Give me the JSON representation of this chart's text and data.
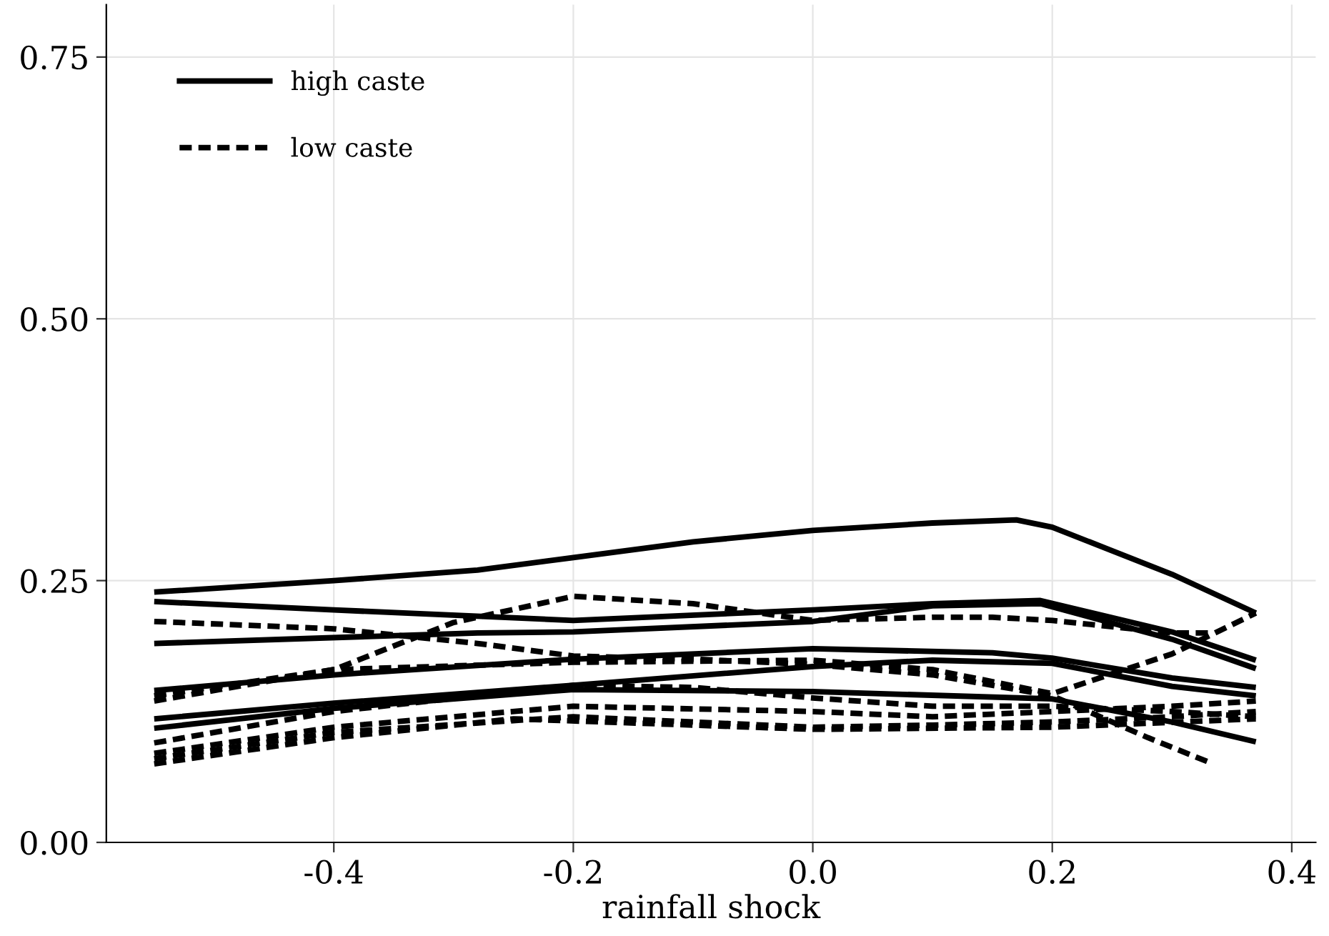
{
  "chart_data": {
    "type": "line",
    "xlabel": "rainfall shock",
    "xlim": [
      -0.59,
      0.42
    ],
    "ylim": [
      0,
      0.8
    ],
    "xticks": [
      {
        "value": -0.4,
        "label": "-0.4"
      },
      {
        "value": -0.2,
        "label": "-0.2"
      },
      {
        "value": 0,
        "label": "0.0"
      },
      {
        "value": 0.2,
        "label": "0.2"
      },
      {
        "value": 0.4,
        "label": "0.4"
      }
    ],
    "yticks": [
      {
        "value": 0,
        "label": "0.00"
      },
      {
        "value": 0.25,
        "label": "0.25"
      },
      {
        "value": 0.5,
        "label": "0.50"
      },
      {
        "value": 0.75,
        "label": "0.75"
      }
    ],
    "grid": true,
    "legend": "top left",
    "marker": "none",
    "series": [
      {
        "name": "high caste",
        "color": "#000000",
        "line_style": "solid",
        "x": [
          -0.55,
          -0.4,
          -0.28,
          -0.2,
          -0.1,
          0.0,
          0.1,
          0.17,
          0.2,
          0.3,
          0.37
        ],
        "values": [
          0.239,
          0.25,
          0.26,
          0.272,
          0.287,
          0.298,
          0.305,
          0.308,
          0.301,
          0.256,
          0.219
        ]
      },
      {
        "color": "#000000",
        "line_style": "solid",
        "x": [
          -0.55,
          -0.4,
          -0.2,
          0.0,
          0.1,
          0.19,
          0.3,
          0.37
        ],
        "values": [
          0.23,
          0.222,
          0.212,
          0.222,
          0.228,
          0.231,
          0.201,
          0.174
        ]
      },
      {
        "color": "#000000",
        "line_style": "solid",
        "x": [
          -0.55,
          -0.28,
          -0.2,
          0.0,
          0.1,
          0.19,
          0.3,
          0.37
        ],
        "values": [
          0.19,
          0.2,
          0.201,
          0.211,
          0.226,
          0.228,
          0.194,
          0.166
        ]
      },
      {
        "color": "#000000",
        "line_style": "solid",
        "x": [
          -0.55,
          -0.4,
          -0.2,
          0.0,
          0.15,
          0.2,
          0.3,
          0.37
        ],
        "values": [
          0.145,
          0.16,
          0.175,
          0.185,
          0.181,
          0.176,
          0.157,
          0.148
        ]
      },
      {
        "color": "#000000",
        "line_style": "solid",
        "x": [
          -0.55,
          -0.4,
          -0.2,
          0.0,
          0.1,
          0.2,
          0.3,
          0.37
        ],
        "values": [
          0.118,
          0.133,
          0.15,
          0.168,
          0.174,
          0.171,
          0.149,
          0.14
        ]
      },
      {
        "color": "#000000",
        "line_style": "solid",
        "x": [
          -0.55,
          -0.4,
          -0.2,
          0.0,
          0.2,
          0.3,
          0.37
        ],
        "values": [
          0.109,
          0.128,
          0.146,
          0.144,
          0.137,
          0.115,
          0.096
        ]
      },
      {
        "name": "low caste",
        "color": "#000000",
        "line_style": "dashed",
        "x": [
          -0.55,
          -0.4,
          -0.28,
          -0.2,
          -0.1,
          0.0,
          0.1,
          0.2,
          0.28,
          0.33
        ],
        "values": [
          0.211,
          0.204,
          0.19,
          0.178,
          0.175,
          0.17,
          0.16,
          0.14,
          0.1,
          0.077
        ]
      },
      {
        "color": "#000000",
        "line_style": "dashed",
        "x": [
          -0.55,
          -0.4,
          -0.3,
          -0.2,
          -0.1,
          0.0,
          0.1,
          0.15,
          0.2,
          0.3,
          0.33
        ],
        "values": [
          0.135,
          0.165,
          0.21,
          0.235,
          0.228,
          0.212,
          0.215,
          0.215,
          0.212,
          0.2,
          0.2
        ]
      },
      {
        "color": "#000000",
        "line_style": "dashed",
        "x": [
          -0.55,
          -0.4,
          -0.2,
          0.0,
          0.1,
          0.2,
          0.3,
          0.37
        ],
        "values": [
          0.14,
          0.165,
          0.172,
          0.174,
          0.165,
          0.142,
          0.18,
          0.219
        ]
      },
      {
        "color": "#000000",
        "line_style": "dashed",
        "x": [
          -0.55,
          -0.4,
          -0.2,
          -0.1,
          0.0,
          0.1,
          0.2,
          0.3,
          0.37
        ],
        "values": [
          0.095,
          0.125,
          0.15,
          0.148,
          0.138,
          0.13,
          0.13,
          0.125,
          0.12
        ]
      },
      {
        "color": "#000000",
        "line_style": "dashed",
        "x": [
          -0.55,
          -0.4,
          -0.2,
          0.0,
          0.1,
          0.2,
          0.3,
          0.37
        ],
        "values": [
          0.085,
          0.11,
          0.13,
          0.125,
          0.12,
          0.125,
          0.13,
          0.135
        ]
      },
      {
        "color": "#000000",
        "line_style": "dashed",
        "x": [
          -0.55,
          -0.4,
          -0.2,
          0.0,
          0.1,
          0.2,
          0.3,
          0.37
        ],
        "values": [
          0.08,
          0.105,
          0.12,
          0.11,
          0.112,
          0.115,
          0.12,
          0.125
        ]
      },
      {
        "color": "#000000",
        "line_style": "dashed",
        "x": [
          -0.55,
          -0.4,
          -0.25,
          -0.1,
          0.0,
          0.2,
          0.37
        ],
        "values": [
          0.075,
          0.1,
          0.118,
          0.112,
          0.108,
          0.11,
          0.118
        ]
      }
    ]
  }
}
